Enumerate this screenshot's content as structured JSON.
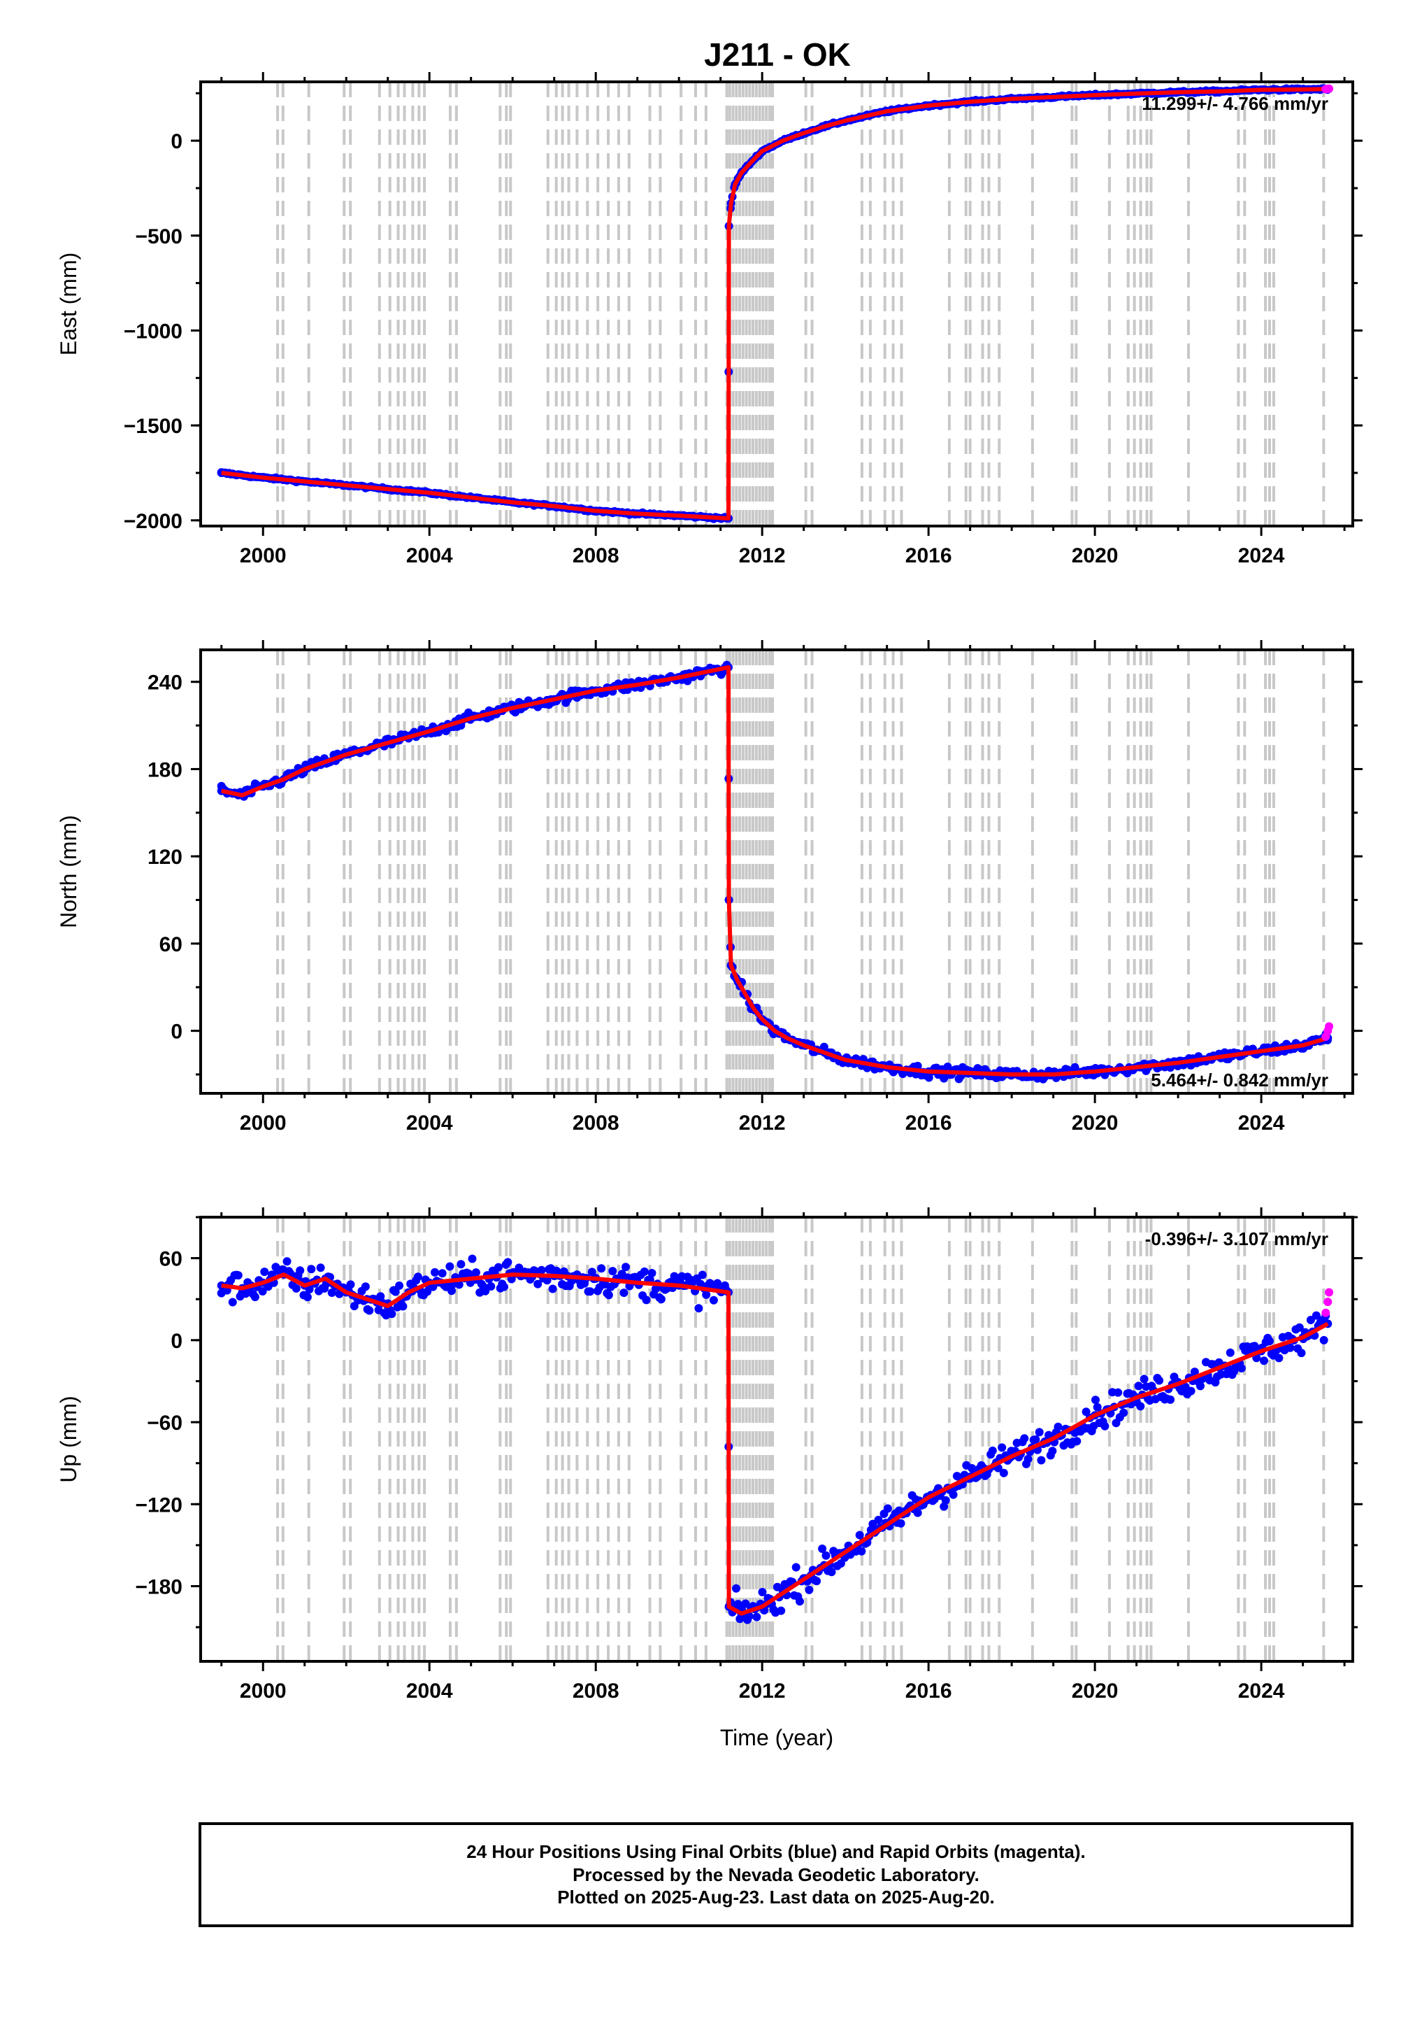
{
  "title": "J211 - OK",
  "footer": {
    "line1": "24 Hour Positions Using Final Orbits (blue) and Rapid Orbits (magenta).",
    "line2": "Processed by the Nevada Geodetic Laboratory.",
    "line3": "Plotted on 2025-Aug-23. Last data on 2025-Aug-20."
  },
  "colors": {
    "final_points": "#0000ff",
    "rapid_points": "#ff00ff",
    "model": "#ff0000",
    "event_lines": "#c8c8c8"
  },
  "chart_data": [
    {
      "type": "scatter",
      "panel": "east",
      "ylabel": "East (mm)",
      "xlabel": "",
      "xlim": [
        1998.5,
        2026.2
      ],
      "ylim": [
        -2030,
        310
      ],
      "xticks": [
        2000,
        2004,
        2008,
        2012,
        2016,
        2020,
        2024
      ],
      "xtick_labels": [
        "2000",
        "2004",
        "2008",
        "2012",
        "2016",
        "2020",
        "2024"
      ],
      "yticks": [
        -2000,
        -1500,
        -1000,
        -500,
        0
      ],
      "ytick_labels": [
        "−2000",
        "−1500",
        "−1000",
        "−500",
        "0"
      ],
      "rate_text": "11.299+/- 4.766 mm/yr",
      "series": [
        {
          "role": "final",
          "x": [
            1999.0,
            2000.0,
            2001.0,
            2002.0,
            2003.0,
            2004.0,
            2005.0,
            2006.0,
            2007.0,
            2008.0,
            2009.0,
            2010.0,
            2011.19,
            2011.2,
            2011.25,
            2011.35,
            2011.5,
            2011.75,
            2012.0,
            2012.5,
            2013.0,
            2013.5,
            2014.0,
            2015.0,
            2016.0,
            2017.0,
            2018.0,
            2019.0,
            2020.0,
            2021.0,
            2022.0,
            2023.0,
            2024.0,
            2025.0,
            2025.6
          ],
          "y": [
            -1750,
            -1775,
            -1795,
            -1815,
            -1835,
            -1855,
            -1880,
            -1905,
            -1925,
            -1950,
            -1965,
            -1975,
            -1990,
            -450,
            -330,
            -230,
            -170,
            -110,
            -55,
            0,
            40,
            75,
            105,
            155,
            185,
            205,
            220,
            230,
            240,
            248,
            255,
            260,
            268,
            270,
            272
          ]
        },
        {
          "role": "rapid",
          "x": [
            2025.55,
            2025.6,
            2025.63
          ],
          "y": [
            272,
            273,
            274
          ]
        }
      ],
      "event_years": [
        2000.35,
        2000.48,
        2001.1,
        2001.95,
        2002.1,
        2002.8,
        2003.05,
        2003.25,
        2003.4,
        2003.6,
        2003.75,
        2003.88,
        2004.5,
        2004.65,
        2005.7,
        2005.85,
        2005.95,
        2006.85,
        2007.05,
        2007.2,
        2007.35,
        2007.55,
        2007.8,
        2008.05,
        2008.3,
        2008.55,
        2008.8,
        2009.3,
        2009.55,
        2010.05,
        2010.4,
        2010.65,
        2011.15,
        2011.22,
        2011.3,
        2011.38,
        2011.46,
        2011.54,
        2011.62,
        2011.7,
        2011.78,
        2011.86,
        2011.94,
        2012.02,
        2012.1,
        2012.18,
        2012.25,
        2013.05,
        2013.2,
        2014.4,
        2014.6,
        2014.95,
        2015.15,
        2015.35,
        2016.5,
        2016.9,
        2017.0,
        2017.3,
        2017.45,
        2017.7,
        2018.5,
        2019.45,
        2019.55,
        2020.35,
        2020.8,
        2020.95,
        2021.1,
        2021.25,
        2021.35,
        2022.25,
        2023.45,
        2023.6,
        2024.1,
        2024.2,
        2024.3,
        2025.5
      ]
    },
    {
      "type": "scatter",
      "panel": "north",
      "ylabel": "North (mm)",
      "xlabel": "",
      "xlim": [
        1998.5,
        2026.2
      ],
      "ylim": [
        -43,
        262
      ],
      "xticks": [
        2000,
        2004,
        2008,
        2012,
        2016,
        2020,
        2024
      ],
      "xtick_labels": [
        "2000",
        "2004",
        "2008",
        "2012",
        "2016",
        "2020",
        "2024"
      ],
      "yticks": [
        0,
        60,
        120,
        180,
        240
      ],
      "ytick_labels": [
        "0",
        "60",
        "120",
        "180",
        "240"
      ],
      "rate_text": "5.464+/- 0.842 mm/yr",
      "series": [
        {
          "role": "final",
          "x": [
            1999.0,
            1999.5,
            2000.0,
            2000.5,
            2001.0,
            2002.0,
            2003.0,
            2004.0,
            2005.0,
            2006.0,
            2007.0,
            2008.0,
            2009.0,
            2010.0,
            2011.19,
            2011.2,
            2011.25,
            2011.4,
            2011.6,
            2011.8,
            2012.0,
            2012.3,
            2012.6,
            2013.0,
            2013.5,
            2014.0,
            2015.0,
            2016.0,
            2017.0,
            2018.0,
            2019.0,
            2020.0,
            2021.0,
            2022.0,
            2023.0,
            2024.0,
            2025.0,
            2025.6
          ],
          "y": [
            165,
            162,
            168,
            173,
            180,
            190,
            198,
            206,
            215,
            222,
            228,
            234,
            238,
            243,
            250,
            90,
            45,
            35,
            25,
            15,
            8,
            0,
            -5,
            -10,
            -15,
            -20,
            -25,
            -28,
            -29,
            -30,
            -30,
            -28,
            -25,
            -22,
            -18,
            -14,
            -10,
            -5
          ]
        },
        {
          "role": "rapid",
          "x": [
            2025.55,
            2025.6,
            2025.63
          ],
          "y": [
            -4,
            0,
            3
          ]
        }
      ],
      "event_years": [
        2000.35,
        2000.48,
        2001.1,
        2001.95,
        2002.1,
        2002.8,
        2003.05,
        2003.25,
        2003.4,
        2003.6,
        2003.75,
        2003.88,
        2004.5,
        2004.65,
        2005.7,
        2005.85,
        2005.95,
        2006.85,
        2007.05,
        2007.2,
        2007.35,
        2007.55,
        2007.8,
        2008.05,
        2008.3,
        2008.55,
        2008.8,
        2009.3,
        2009.55,
        2010.05,
        2010.4,
        2010.65,
        2011.15,
        2011.22,
        2011.3,
        2011.38,
        2011.46,
        2011.54,
        2011.62,
        2011.7,
        2011.78,
        2011.86,
        2011.94,
        2012.02,
        2012.1,
        2012.18,
        2012.25,
        2013.05,
        2013.2,
        2014.4,
        2014.6,
        2014.95,
        2015.15,
        2015.35,
        2016.5,
        2016.9,
        2017.0,
        2017.3,
        2017.45,
        2017.7,
        2018.5,
        2019.45,
        2019.55,
        2020.35,
        2020.8,
        2020.95,
        2021.1,
        2021.25,
        2021.35,
        2022.25,
        2023.45,
        2023.6,
        2024.1,
        2024.2,
        2024.3,
        2025.5
      ]
    },
    {
      "type": "scatter",
      "panel": "up",
      "ylabel": "Up (mm)",
      "xlabel": "Time (year)",
      "xlim": [
        1998.5,
        2026.2
      ],
      "ylim": [
        -235,
        90
      ],
      "xticks": [
        2000,
        2004,
        2008,
        2012,
        2016,
        2020,
        2024
      ],
      "xtick_labels": [
        "2000",
        "2004",
        "2008",
        "2012",
        "2016",
        "2020",
        "2024"
      ],
      "yticks": [
        -180,
        -120,
        -60,
        0,
        60
      ],
      "ytick_labels": [
        "−180",
        "−120",
        "−60",
        "0",
        "60"
      ],
      "rate_text": "-0.396+/- 3.107 mm/yr",
      "series": [
        {
          "role": "final",
          "x": [
            1999.0,
            1999.5,
            2000.0,
            2000.5,
            2001.0,
            2001.5,
            2002.0,
            2002.5,
            2003.0,
            2003.5,
            2004.0,
            2005.0,
            2006.0,
            2007.0,
            2008.0,
            2009.0,
            2010.0,
            2011.19,
            2011.2,
            2011.5,
            2012.0,
            2012.5,
            2013.0,
            2014.0,
            2015.0,
            2016.0,
            2017.0,
            2018.0,
            2019.0,
            2020.0,
            2021.0,
            2022.0,
            2023.0,
            2024.0,
            2025.0,
            2025.6
          ],
          "y": [
            40,
            38,
            42,
            48,
            40,
            45,
            35,
            30,
            25,
            35,
            42,
            45,
            48,
            47,
            45,
            42,
            40,
            35,
            -195,
            -200,
            -195,
            -185,
            -175,
            -155,
            -135,
            -115,
            -100,
            -85,
            -72,
            -55,
            -42,
            -32,
            -20,
            -8,
            2,
            12
          ]
        },
        {
          "role": "rapid",
          "x": [
            2025.55,
            2025.6,
            2025.63
          ],
          "y": [
            20,
            28,
            35
          ]
        }
      ],
      "event_years": [
        2000.35,
        2000.48,
        2001.1,
        2001.95,
        2002.1,
        2002.8,
        2003.05,
        2003.25,
        2003.4,
        2003.6,
        2003.75,
        2003.88,
        2004.5,
        2004.65,
        2005.7,
        2005.85,
        2005.95,
        2006.85,
        2007.05,
        2007.2,
        2007.35,
        2007.55,
        2007.8,
        2008.05,
        2008.3,
        2008.55,
        2008.8,
        2009.3,
        2009.55,
        2010.05,
        2010.4,
        2010.65,
        2011.15,
        2011.22,
        2011.3,
        2011.38,
        2011.46,
        2011.54,
        2011.62,
        2011.7,
        2011.78,
        2011.86,
        2011.94,
        2012.02,
        2012.1,
        2012.18,
        2012.25,
        2013.05,
        2013.2,
        2014.4,
        2014.6,
        2014.95,
        2015.15,
        2015.35,
        2016.5,
        2016.9,
        2017.0,
        2017.3,
        2017.45,
        2017.7,
        2018.5,
        2019.45,
        2019.55,
        2020.35,
        2020.8,
        2020.95,
        2021.1,
        2021.25,
        2021.35,
        2022.25,
        2023.45,
        2023.6,
        2024.1,
        2024.2,
        2024.3,
        2025.5
      ]
    }
  ]
}
